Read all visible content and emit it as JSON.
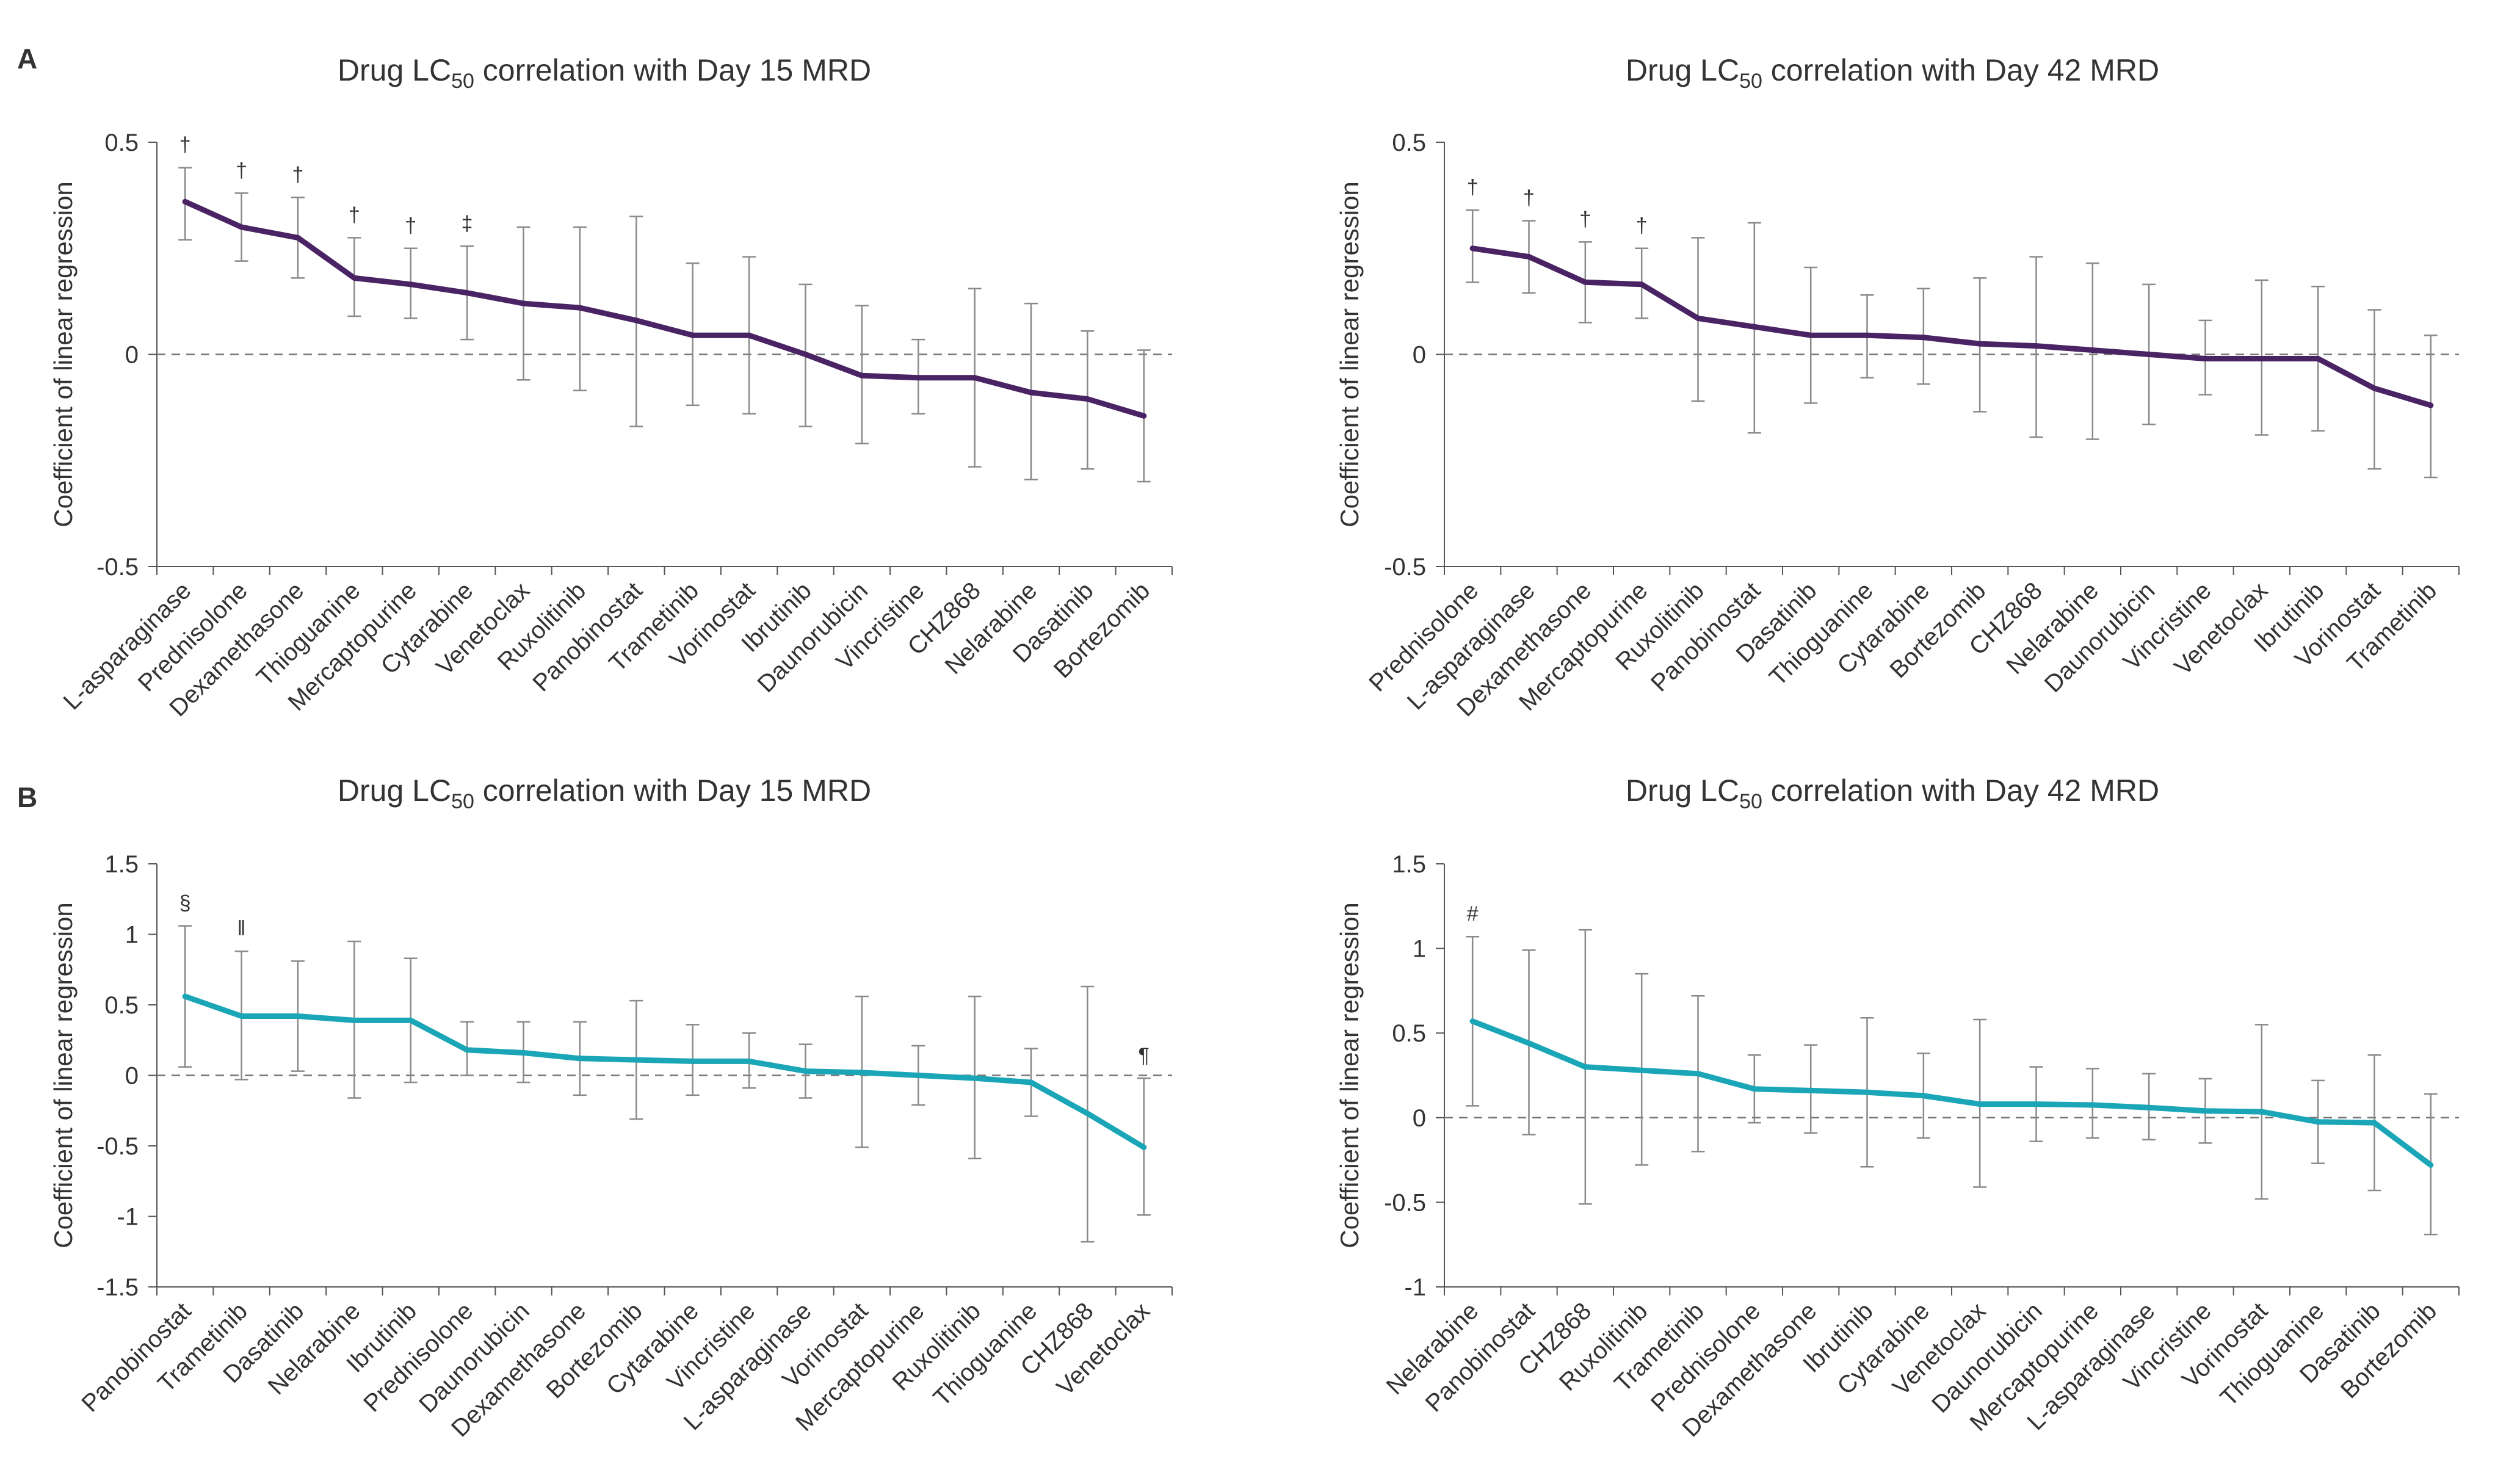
{
  "panels": [
    "A",
    "B"
  ],
  "chart_data": [
    {
      "type": "line",
      "panel": "A",
      "title_main": "Drug LC",
      "title_sub": "50",
      "title_rest": " correlation with Day 15 MRD",
      "ylabel": "Coefficient of linear regression",
      "ylim": [
        -0.5,
        0.5
      ],
      "yticks": [
        0.5,
        0,
        -0.5
      ],
      "ytick_labels": [
        "0.5",
        "0",
        "-0.5"
      ],
      "grid": false,
      "reference_line": 0,
      "color": "#4a2364",
      "categories": [
        "L-asparaginase",
        "Prednisolone",
        "Dexamethasone",
        "Thioguanine",
        "Mercaptopurine",
        "Cytarabine",
        "Venetoclax",
        "Ruxolitinib",
        "Panobinostat",
        "Trametinib",
        "Vorinostat",
        "Ibrutinib",
        "Daunorubicin",
        "Vincristine",
        "CHZ868",
        "Nelarabine",
        "Dasatinib",
        "Bortezomib"
      ],
      "values": [
        0.36,
        0.3,
        0.275,
        0.18,
        0.165,
        0.145,
        0.12,
        0.11,
        0.08,
        0.045,
        0.045,
        0.0,
        -0.05,
        -0.055,
        -0.055,
        -0.09,
        -0.105,
        -0.145
      ],
      "err_low": [
        0.27,
        0.22,
        0.18,
        0.09,
        0.085,
        0.035,
        -0.06,
        -0.085,
        -0.17,
        -0.12,
        -0.14,
        -0.17,
        -0.21,
        -0.14,
        -0.265,
        -0.295,
        -0.27,
        -0.3
      ],
      "err_high": [
        0.44,
        0.38,
        0.37,
        0.275,
        0.25,
        0.255,
        0.3,
        0.3,
        0.325,
        0.215,
        0.23,
        0.165,
        0.115,
        0.035,
        0.155,
        0.12,
        0.055,
        0.01
      ],
      "annotations": [
        "†",
        "†",
        "†",
        "†",
        "†",
        "‡",
        "",
        "",
        "",
        "",
        "",
        "",
        "",
        "",
        "",
        "",
        "",
        ""
      ]
    },
    {
      "type": "line",
      "panel": "A",
      "title_main": "Drug LC",
      "title_sub": "50",
      "title_rest": " correlation with Day 42 MRD",
      "ylabel": "Coefficient of linear regression",
      "ylim": [
        -0.5,
        0.5
      ],
      "yticks": [
        0.5,
        0,
        -0.5
      ],
      "ytick_labels": [
        "0.5",
        "0",
        "-0.5"
      ],
      "grid": false,
      "reference_line": 0,
      "color": "#4a2364",
      "categories": [
        "Prednisolone",
        "L-asparaginase",
        "Dexamethasone",
        "Mercaptopurine",
        "Ruxolitinib",
        "Panobinostat",
        "Dasatinib",
        "Thioguanine",
        "Cytarabine",
        "Bortezomib",
        "CHZ868",
        "Nelarabine",
        "Daunorubicin",
        "Vincristine",
        "Venetoclax",
        "Ibrutinib",
        "Vorinostat",
        "Trametinib"
      ],
      "values": [
        0.25,
        0.23,
        0.17,
        0.165,
        0.085,
        0.065,
        0.045,
        0.045,
        0.04,
        0.025,
        0.02,
        0.01,
        0.0,
        -0.01,
        -0.01,
        -0.01,
        -0.08,
        -0.12
      ],
      "err_low": [
        0.17,
        0.145,
        0.075,
        0.085,
        -0.11,
        -0.185,
        -0.115,
        -0.055,
        -0.07,
        -0.135,
        -0.195,
        -0.2,
        -0.165,
        -0.095,
        -0.19,
        -0.18,
        -0.27,
        -0.29
      ],
      "err_high": [
        0.34,
        0.315,
        0.265,
        0.25,
        0.275,
        0.31,
        0.205,
        0.14,
        0.155,
        0.18,
        0.23,
        0.215,
        0.165,
        0.08,
        0.175,
        0.16,
        0.105,
        0.045
      ],
      "annotations": [
        "†",
        "†",
        "†",
        "†",
        "",
        "",
        "",
        "",
        "",
        "",
        "",
        "",
        "",
        "",
        "",
        "",
        "",
        ""
      ]
    },
    {
      "type": "line",
      "panel": "B",
      "title_main": "Drug LC",
      "title_sub": "50",
      "title_rest": " correlation with Day 15 MRD",
      "ylabel": "Coefficient of linear regression",
      "ylim": [
        -1.5,
        1.5
      ],
      "yticks": [
        1.5,
        1,
        0.5,
        0,
        -0.5,
        -1,
        -1.5
      ],
      "ytick_labels": [
        "1.5",
        "1",
        "0.5",
        "0",
        "-0.5",
        "-1",
        "-1.5"
      ],
      "grid": false,
      "reference_line": 0,
      "color": "#1aa6b7",
      "categories": [
        "Panobinostat",
        "Trametinib",
        "Dasatinib",
        "Nelarabine",
        "Ibrutinib",
        "Prednisolone",
        "Daunorubicin",
        "Dexamethasone",
        "Bortezomib",
        "Cytarabine",
        "Vincristine",
        "L-asparaginase",
        "Vorinostat",
        "Mercaptopurine",
        "Ruxolitinib",
        "Thioguanine",
        "CHZ868",
        "Venetoclax"
      ],
      "values": [
        0.56,
        0.42,
        0.42,
        0.39,
        0.39,
        0.18,
        0.16,
        0.12,
        0.11,
        0.1,
        0.1,
        0.03,
        0.02,
        0.0,
        -0.02,
        -0.05,
        -0.27,
        -0.51
      ],
      "err_low": [
        0.06,
        -0.03,
        0.03,
        -0.16,
        -0.05,
        0.0,
        -0.05,
        -0.14,
        -0.31,
        -0.14,
        -0.09,
        -0.16,
        -0.51,
        -0.21,
        -0.59,
        -0.29,
        -1.18,
        -0.99
      ],
      "err_high": [
        1.06,
        0.88,
        0.81,
        0.95,
        0.83,
        0.38,
        0.38,
        0.38,
        0.53,
        0.36,
        0.3,
        0.22,
        0.56,
        0.21,
        0.56,
        0.19,
        0.63,
        -0.02
      ],
      "annotations": [
        "§",
        "‖",
        "",
        "",
        "",
        "",
        "",
        "",
        "",
        "",
        "",
        "",
        "",
        "",
        "",
        "",
        "",
        "¶"
      ]
    },
    {
      "type": "line",
      "panel": "B",
      "title_main": "Drug LC",
      "title_sub": "50",
      "title_rest": " correlation with Day 42 MRD",
      "ylabel": "Coefficient of linear regression",
      "ylim": [
        -1,
        1.5
      ],
      "yticks": [
        1.5,
        1,
        0.5,
        0,
        -0.5,
        -1
      ],
      "ytick_labels": [
        "1.5",
        "1",
        "0.5",
        "0",
        "-0.5",
        "-1"
      ],
      "grid": false,
      "reference_line": 0,
      "color": "#1aa6b7",
      "categories": [
        "Nelarabine",
        "Panobinostat",
        "CHZ868",
        "Ruxolitinib",
        "Trametinib",
        "Prednisolone",
        "Dexamethasone",
        "Ibrutinib",
        "Cytarabine",
        "Venetoclax",
        "Daunorubicin",
        "Mercaptopurine",
        "L-asparaginase",
        "Vincristine",
        "Vorinostat",
        "Thioguanine",
        "Dasatinib",
        "Bortezomib"
      ],
      "values": [
        0.57,
        0.44,
        0.3,
        0.28,
        0.26,
        0.17,
        0.16,
        0.15,
        0.13,
        0.08,
        0.08,
        0.075,
        0.06,
        0.04,
        0.035,
        -0.025,
        -0.03,
        -0.28
      ],
      "err_low": [
        0.07,
        -0.1,
        -0.51,
        -0.28,
        -0.2,
        -0.03,
        -0.09,
        -0.29,
        -0.12,
        -0.41,
        -0.14,
        -0.12,
        -0.13,
        -0.15,
        -0.48,
        -0.27,
        -0.43,
        -0.69
      ],
      "err_high": [
        1.07,
        0.99,
        1.11,
        0.85,
        0.72,
        0.37,
        0.43,
        0.59,
        0.38,
        0.58,
        0.3,
        0.29,
        0.26,
        0.23,
        0.55,
        0.22,
        0.37,
        0.14
      ],
      "annotations": [
        "#",
        "",
        "",
        "",
        "",
        "",
        "",
        "",
        "",
        "",
        "",
        "",
        "",
        "",
        "",
        "",
        "",
        ""
      ]
    }
  ]
}
